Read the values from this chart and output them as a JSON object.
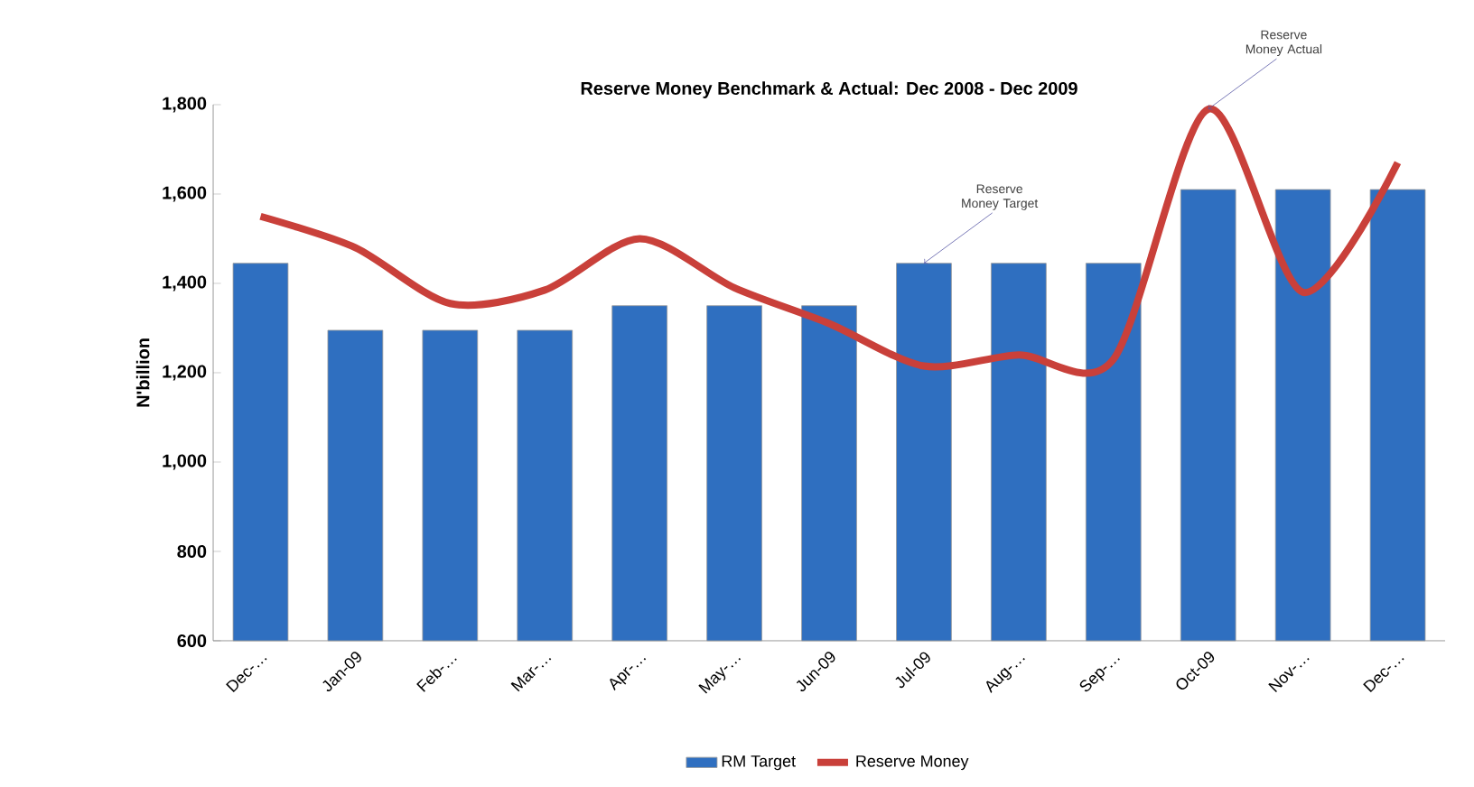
{
  "chart_data": {
    "type": "bar",
    "title": "Reserve Money Benchmark & Actual: Dec 2008 - Dec 2009",
    "ylabel": "N'billion",
    "categories": [
      "Dec-…",
      "Jan-09",
      "Feb-…",
      "Mar-…",
      "Apr-…",
      "May-…",
      "Jun-09",
      "Jul-09",
      "Aug-…",
      "Sep-…",
      "Oct-09",
      "Nov-…",
      "Dec-…"
    ],
    "series": [
      {
        "name": "RM Target",
        "color": "#2f6fc0",
        "values": [
          1445,
          1295,
          1295,
          1295,
          1350,
          1350,
          1350,
          1445,
          1445,
          1445,
          1610,
          1610,
          1610
        ]
      },
      {
        "name": "Reserve Money",
        "type": "line",
        "color": "#c9403a",
        "values": [
          1550,
          1480,
          1355,
          1385,
          1500,
          1390,
          1310,
          1215,
          1240,
          1230,
          1790,
          1380,
          1670
        ]
      }
    ],
    "ylim": [
      600,
      1800
    ],
    "yticks": [
      {
        "value": 600,
        "label": "600"
      },
      {
        "value": 800,
        "label": "800"
      },
      {
        "value": 1000,
        "label": "1,000"
      },
      {
        "value": 1200,
        "label": "1,200"
      },
      {
        "value": 1400,
        "label": "1,400"
      },
      {
        "value": 1600,
        "label": "1,600"
      },
      {
        "value": 1800,
        "label": "1,800"
      }
    ],
    "annotations": [
      {
        "text": "Reserve Money Target",
        "x": "Jul-09",
        "y": 1445
      },
      {
        "text": "Reserve Money Actual",
        "x": "Oct-09",
        "y": 1790
      }
    ],
    "legend": "bottom"
  }
}
